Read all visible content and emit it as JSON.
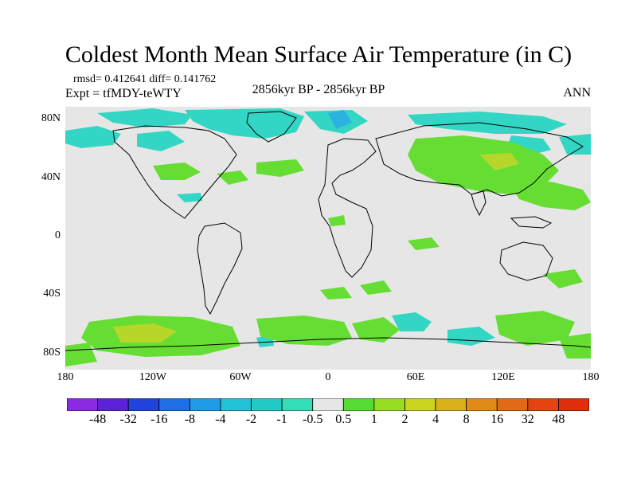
{
  "title": "Coldest Month Mean Surface Air Temperature (in C)",
  "stats": "rmsd= 0.412641 diff= 0.141762",
  "expt": "Expt = tfMDY-teWTY",
  "period": "2856kyr BP - 2856kyr BP",
  "season": "ANN",
  "lat_labels": [
    "80N",
    "40N",
    "0",
    "40S",
    "80S"
  ],
  "lon_labels": [
    "180",
    "120W",
    "60W",
    "0",
    "60E",
    "120E",
    "180"
  ],
  "colorbar": {
    "labels": [
      "-48",
      "-32",
      "-16",
      "-8",
      "-4",
      "-2",
      "-1",
      "-0.5",
      "0.5",
      "1",
      "2",
      "4",
      "8",
      "16",
      "32",
      "48"
    ],
    "colors": [
      "#8a2be2",
      "#5b22d8",
      "#2244dd",
      "#1e6fe6",
      "#1e9be6",
      "#22c2d6",
      "#22ccc4",
      "#33ddb5",
      "#e6e6e6",
      "#55dd33",
      "#99dd22",
      "#c8d41e",
      "#d9b21a",
      "#e08a18",
      "#e26a14",
      "#e4440f",
      "#e02d0c"
    ]
  },
  "colors": {
    "land_background": "#e6e6e6",
    "cool_anomaly": "#33d6c4",
    "cool_anomaly_strong": "#2bb2e0",
    "warm_anomaly": "#66dd33",
    "warm_anomaly_strong": "#b6d62a"
  },
  "map_data": {
    "projection": "cylindrical equidistant",
    "lon_range": [
      -180,
      180
    ],
    "lat_range": [
      -90,
      90
    ],
    "field": "surface air temperature anomaly"
  }
}
